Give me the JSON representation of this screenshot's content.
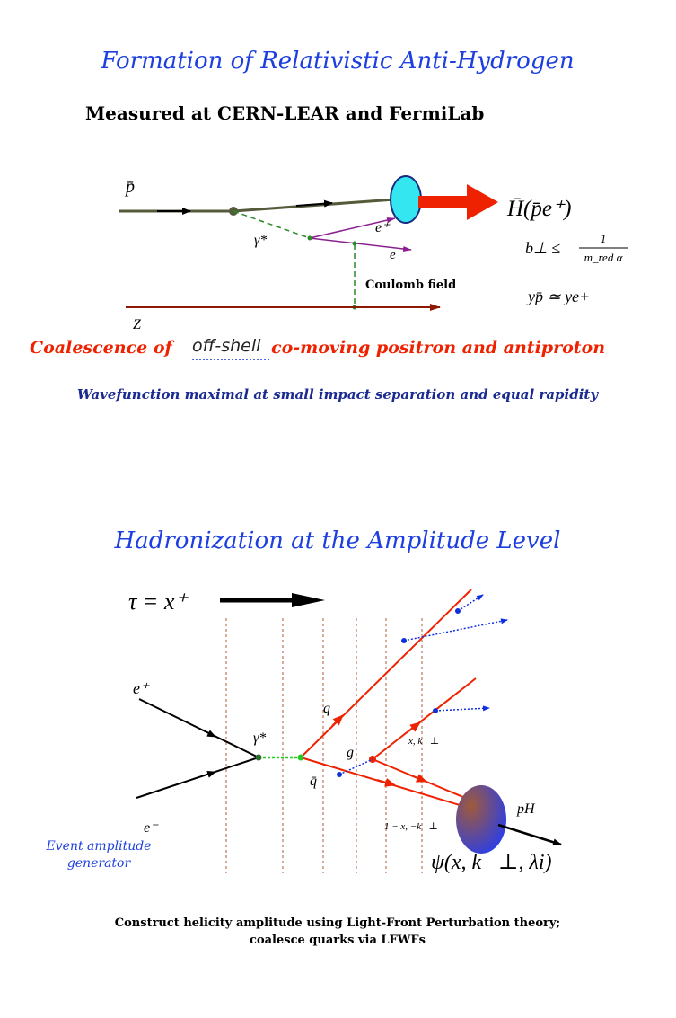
{
  "slide1": {
    "title": "Formation of Relativistic Anti-Hydrogen",
    "subtitle": "Measured at CERN-LEAR and FermiLab",
    "antiproton": "p̄",
    "photon": "γ*",
    "positron": "e⁺",
    "electron": "e⁻",
    "coulomb": "Coulomb field",
    "nucleus": "Z",
    "product": "H̄(p̄e⁺)",
    "impact_lhs": "b⊥ ≤",
    "impact_num": "1",
    "impact_den": "m_red α",
    "rapidity": "yp̄ ≃ ye+",
    "caption_start": "Coalescence of",
    "caption_offshell": "off-shell",
    "caption_end": "co-moving positron and antiproton",
    "caption2": "Wavefunction maximal at small impact separation and equal rapidity"
  },
  "slide2": {
    "title": "Hadronization at the Amplitude Level",
    "time": "τ = x⁺",
    "positron": "e⁺",
    "electron": "e⁻",
    "photon": "γ*",
    "quark": "q",
    "antiquark": "q̄",
    "gluon": "g",
    "momentum1": "x, k⃗⊥",
    "momentum2": "1 − x, −k⃗⊥",
    "hadron": "pH",
    "wavefunction": "ψ(x, k⃗⊥, λi)",
    "generator_line1": "Event amplitude",
    "generator_line2": "generator",
    "caption_line1": "Construct helicity amplitude using Light-Front Perturbation theory;",
    "caption_line2": "coalesce quarks via LFWFs"
  }
}
